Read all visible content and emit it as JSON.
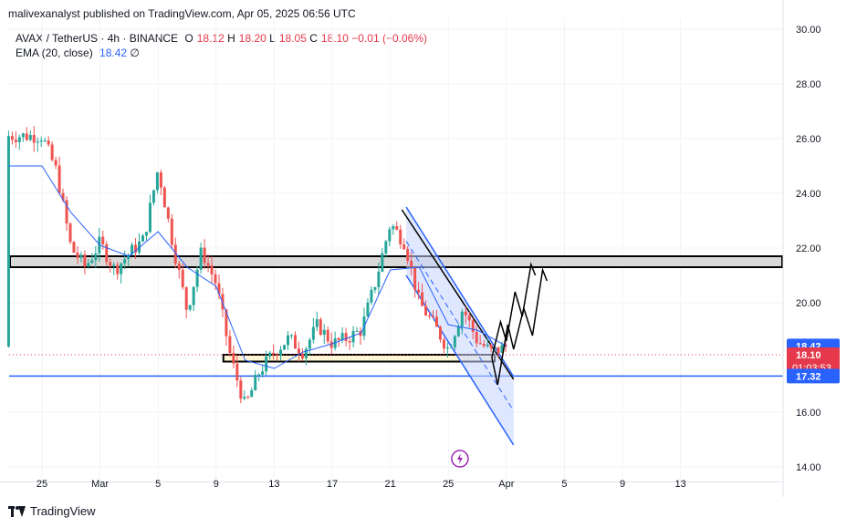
{
  "header": {
    "publisher": "malivexanalyst published on TradingView.com, Apr 05, 2025 06:56 UTC"
  },
  "legend": {
    "symbol": "AVAX / TetherUS · 4h · BINANCE",
    "o_label": "O",
    "o": "18.12",
    "h_label": "H",
    "h": "18.20",
    "l_label": "L",
    "l": "18.05",
    "c_label": "C",
    "c": "18.10",
    "change": "−0.01 (−0.06%)",
    "ema_label": "EMA (20, close)",
    "ema_value": "18.42",
    "ema_icon": "∅"
  },
  "footer": {
    "brand": "TradingView"
  },
  "colors": {
    "up": "#26a69a",
    "down": "#ef5350",
    "ema": "#2962ff",
    "support_line": "#2962ff",
    "channel_fill": "#c7d5ff",
    "zone_fill": "#d9d9d9",
    "ema_tag": "#2962ff",
    "price_tag": "#e5394b",
    "support_tag": "#2962ff"
  },
  "chart_data": {
    "type": "candlestick",
    "ylim": [
      13.0,
      30.4
    ],
    "yticks": [
      "30.00",
      "28.00",
      "26.00",
      "24.00",
      "22.00",
      "20.00",
      "16.00",
      "14.00"
    ],
    "xticks": [
      "25",
      "Mar",
      "5",
      "9",
      "13",
      "17",
      "21",
      "25",
      "Apr",
      "5",
      "9",
      "13"
    ],
    "x_dates": [
      "Feb 25",
      "Mar 1",
      "Mar 5",
      "Mar 9",
      "Mar 13",
      "Mar 17",
      "Mar 21",
      "Mar 25",
      "Apr 1",
      "Apr 5",
      "Apr 9",
      "Apr 13"
    ],
    "price_path": [
      {
        "d": 0,
        "v": 26.1
      },
      {
        "d": 1,
        "v": 24.8
      },
      {
        "d": 2,
        "v": 22.0
      },
      {
        "d": 3,
        "v": 21.3
      },
      {
        "d": 4,
        "v": 22.2
      },
      {
        "d": 5,
        "v": 21.2
      },
      {
        "d": 6,
        "v": 21.8
      },
      {
        "d": 7,
        "v": 22.3
      },
      {
        "d": 8,
        "v": 24.9
      },
      {
        "d": 9,
        "v": 22.2
      },
      {
        "d": 10,
        "v": 19.7
      },
      {
        "d": 11,
        "v": 21.9
      },
      {
        "d": 12,
        "v": 20.7
      },
      {
        "d": 13,
        "v": 18.0
      },
      {
        "d": 14,
        "v": 16.2
      },
      {
        "d": 15,
        "v": 17.5
      },
      {
        "d": 16,
        "v": 18.2
      },
      {
        "d": 17,
        "v": 18.7
      },
      {
        "d": 18,
        "v": 18.2
      },
      {
        "d": 19,
        "v": 19.2
      },
      {
        "d": 20,
        "v": 18.5
      },
      {
        "d": 21,
        "v": 18.7
      },
      {
        "d": 22,
        "v": 19.0
      },
      {
        "d": 23,
        "v": 20.8
      },
      {
        "d": 24,
        "v": 22.9
      },
      {
        "d": 25,
        "v": 22.2
      },
      {
        "d": 26,
        "v": 20.0
      },
      {
        "d": 27,
        "v": 19.2
      },
      {
        "d": 28,
        "v": 18.3
      },
      {
        "d": 29,
        "v": 19.8
      },
      {
        "d": 30,
        "v": 18.6
      },
      {
        "d": 31,
        "v": 18.2
      },
      {
        "d": 32,
        "v": 18.4
      }
    ],
    "ema_path": [
      {
        "d": 0,
        "v": 25.0
      },
      {
        "d": 2,
        "v": 23.3
      },
      {
        "d": 4,
        "v": 22.1
      },
      {
        "d": 6,
        "v": 21.7
      },
      {
        "d": 8,
        "v": 22.6
      },
      {
        "d": 10,
        "v": 21.3
      },
      {
        "d": 12,
        "v": 20.6
      },
      {
        "d": 14,
        "v": 17.9
      },
      {
        "d": 16,
        "v": 17.6
      },
      {
        "d": 18,
        "v": 18.2
      },
      {
        "d": 20,
        "v": 18.5
      },
      {
        "d": 22,
        "v": 18.9
      },
      {
        "d": 24,
        "v": 21.2
      },
      {
        "d": 26,
        "v": 21.3
      },
      {
        "d": 28,
        "v": 19.2
      },
      {
        "d": 30,
        "v": 19.0
      },
      {
        "d": 32,
        "v": 18.42
      }
    ],
    "resistance_zone": [
      21.3,
      21.7
    ],
    "support_zone": [
      17.85,
      18.1
    ],
    "support_line": 17.32,
    "descending_channel": {
      "upper": [
        {
          "d": 25.1,
          "v": 23.5
        },
        {
          "d": 32.5,
          "v": 17.3
        }
      ],
      "lower": [
        {
          "d": 25.1,
          "v": 21.0
        },
        {
          "d": 32.5,
          "v": 14.8
        }
      ]
    },
    "projection_paths": [
      [
        {
          "d": 31.0,
          "v": 18.0
        },
        {
          "d": 31.6,
          "v": 19.3
        },
        {
          "d": 32.0,
          "v": 18.6
        },
        {
          "d": 32.6,
          "v": 20.4
        },
        {
          "d": 33.1,
          "v": 19.5
        },
        {
          "d": 33.7,
          "v": 21.4
        },
        {
          "d": 34.0,
          "v": 21.0
        }
      ],
      [
        {
          "d": 31.0,
          "v": 18.0
        },
        {
          "d": 31.4,
          "v": 17.0
        },
        {
          "d": 32.1,
          "v": 19.2
        },
        {
          "d": 32.5,
          "v": 18.3
        },
        {
          "d": 33.2,
          "v": 19.8
        },
        {
          "d": 33.8,
          "v": 18.8
        },
        {
          "d": 34.5,
          "v": 21.2
        },
        {
          "d": 34.8,
          "v": 20.8
        }
      ]
    ],
    "price_labels": {
      "ema": "18.42",
      "last": "18.10",
      "countdown": "01:03:53",
      "support": "17.32"
    },
    "grid": true
  }
}
